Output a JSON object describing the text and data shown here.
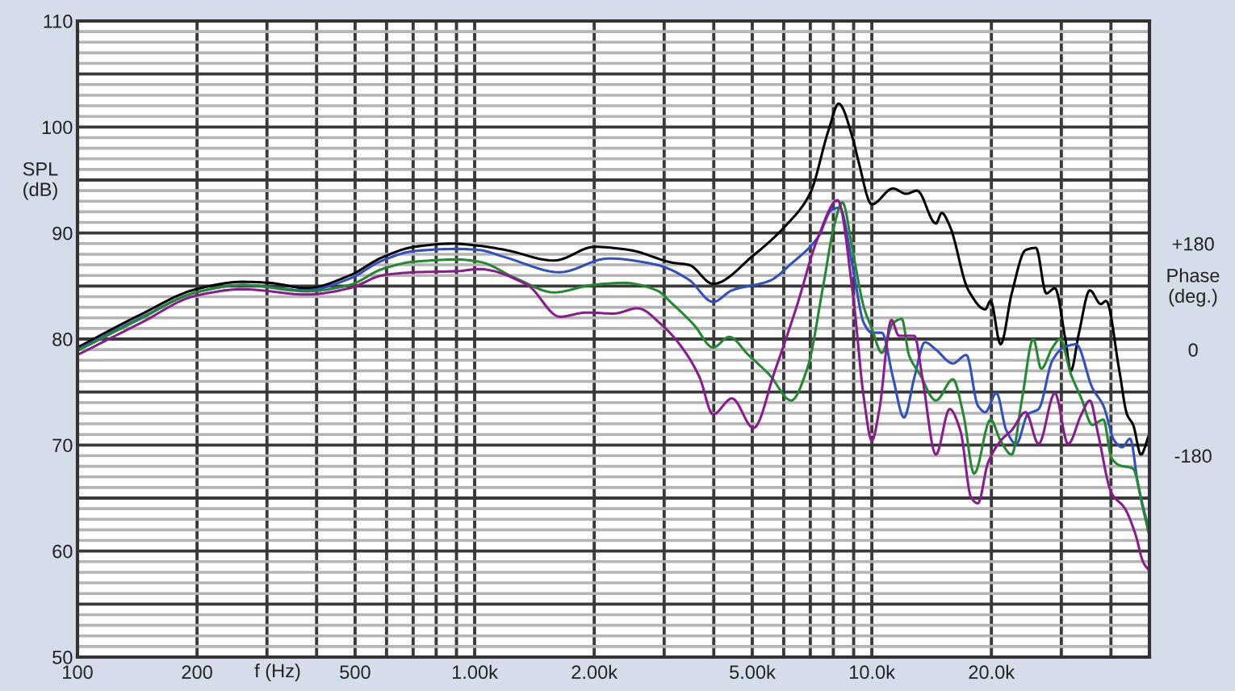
{
  "chart_data": {
    "type": "line",
    "xlabel": "f (Hz)",
    "ylabel": "SPL\n(dB)",
    "y2label": "Phase\n(deg.)",
    "log": "x",
    "grid": true,
    "xlim": [
      100,
      50000
    ],
    "ylim": [
      50,
      110
    ],
    "y2lim": [
      -522,
      558
    ],
    "xticks": [
      100,
      200,
      {
        "value": 300,
        "label": null
      },
      {
        "value": 400,
        "label": null
      },
      500,
      {
        "value": 600,
        "label": null
      },
      {
        "value": 700,
        "label": null
      },
      {
        "value": 800,
        "label": null
      },
      {
        "value": 900,
        "label": null
      },
      {
        "value": 1000,
        "label": "1.00k"
      },
      {
        "value": 2000,
        "label": "2.00k"
      },
      {
        "value": 3000,
        "label": null
      },
      {
        "value": 4000,
        "label": null
      },
      {
        "value": 5000,
        "label": "5.00k"
      },
      {
        "value": 6000,
        "label": null
      },
      {
        "value": 7000,
        "label": null
      },
      {
        "value": 8000,
        "label": null
      },
      {
        "value": 9000,
        "label": null
      },
      {
        "value": 10000,
        "label": "10.0k"
      },
      {
        "value": 20000,
        "label": "20.0k"
      },
      {
        "value": 30000,
        "label": null
      },
      {
        "value": 40000,
        "label": null
      }
    ],
    "yticks": [
      50,
      {
        "value": 51,
        "label": null
      },
      {
        "value": 52,
        "label": null
      },
      {
        "value": 53,
        "label": null
      },
      {
        "value": 54,
        "label": null
      },
      {
        "value": 55,
        "label": null
      },
      {
        "value": 56,
        "label": null
      },
      {
        "value": 57,
        "label": null
      },
      {
        "value": 58,
        "label": null
      },
      {
        "value": 59,
        "label": null
      },
      60,
      {
        "value": 61,
        "label": null
      },
      {
        "value": 62,
        "label": null
      },
      {
        "value": 63,
        "label": null
      },
      {
        "value": 64,
        "label": null
      },
      {
        "value": 65,
        "label": null
      },
      {
        "value": 66,
        "label": null
      },
      {
        "value": 67,
        "label": null
      },
      {
        "value": 68,
        "label": null
      },
      {
        "value": 69,
        "label": null
      },
      70,
      {
        "value": 71,
        "label": null
      },
      {
        "value": 72,
        "label": null
      },
      {
        "value": 73,
        "label": null
      },
      {
        "value": 74,
        "label": null
      },
      {
        "value": 75,
        "label": null
      },
      {
        "value": 76,
        "label": null
      },
      {
        "value": 77,
        "label": null
      },
      {
        "value": 78,
        "label": null
      },
      {
        "value": 79,
        "label": null
      },
      80,
      {
        "value": 81,
        "label": null
      },
      {
        "value": 82,
        "label": null
      },
      {
        "value": 83,
        "label": null
      },
      {
        "value": 84,
        "label": null
      },
      {
        "value": 85,
        "label": null
      },
      {
        "value": 86,
        "label": null
      },
      {
        "value": 87,
        "label": null
      },
      {
        "value": 88,
        "label": null
      },
      {
        "value": 89,
        "label": null
      },
      90,
      {
        "value": 91,
        "label": null
      },
      {
        "value": 92,
        "label": null
      },
      {
        "value": 93,
        "label": null
      },
      {
        "value": 94,
        "label": null
      },
      {
        "value": 95,
        "label": null
      },
      {
        "value": 96,
        "label": null
      },
      {
        "value": 97,
        "label": null
      },
      {
        "value": 98,
        "label": null
      },
      {
        "value": 99,
        "label": null
      },
      100,
      {
        "value": 101,
        "label": null
      },
      {
        "value": 102,
        "label": null
      },
      {
        "value": 103,
        "label": null
      },
      {
        "value": 104,
        "label": null
      },
      {
        "value": 105,
        "label": null
      },
      {
        "value": 106,
        "label": null
      },
      {
        "value": 107,
        "label": null
      },
      {
        "value": 108,
        "label": null
      },
      {
        "value": 109,
        "label": null
      },
      110
    ],
    "y2ticks": [
      {
        "value": 180,
        "label": "+180"
      },
      0,
      -180
    ],
    "series": [
      {
        "color": "#000000",
        "x": [
          100,
          144,
          199,
          260,
          304,
          378,
          485,
          585,
          705,
          877,
          1025,
          1197,
          1585,
          2004,
          2455,
          3154,
          3461,
          3983,
          5035,
          6072,
          6985,
          7796,
          8250,
          8974,
          9250,
          10000,
          11300,
          12200,
          13000,
          14500,
          15000,
          15700,
          17500,
          19300,
          19900,
          21100,
          22500,
          24400,
          25900,
          27500,
          28900,
          30700,
          31700,
          33200,
          35400,
          37700,
          38900,
          42000,
          43900,
          45500,
          47600,
          49800
        ],
        "values": [
          79.2,
          82.3,
          84.7,
          85.4,
          85.3,
          84.8,
          86.0,
          87.7,
          88.7,
          89.0,
          88.8,
          88.4,
          87.4,
          88.7,
          88.4,
          87.2,
          87.0,
          85.2,
          87.9,
          90.7,
          93.7,
          99.8,
          102.2,
          98.8,
          96.8,
          92.7,
          94.2,
          93.7,
          94.0,
          90.9,
          91.9,
          90.7,
          84.6,
          82.8,
          83.6,
          79.5,
          84.3,
          88.4,
          88.6,
          84.3,
          84.8,
          80.0,
          77.0,
          80.5,
          84.6,
          83.3,
          83.6,
          77.0,
          72.9,
          71.9,
          69.1,
          70.9
        ]
      },
      {
        "color": "#3050c0",
        "x": [
          100,
          144,
          199,
          260,
          378,
          485,
          585,
          705,
          905,
          1025,
          1197,
          1638,
          2168,
          2871,
          3461,
          3983,
          4446,
          5534,
          6264,
          7323,
          7930,
          8300,
          8970,
          9550,
          10000,
          10600,
          11300,
          12050,
          12800,
          13600,
          14500,
          16000,
          17300,
          18500,
          19300,
          20600,
          21800,
          23100,
          24700,
          26300,
          28500,
          30400,
          32700,
          35900,
          38300,
          40800,
          42700,
          44700,
          46800,
          49800
        ],
        "values": [
          79.0,
          82.0,
          84.4,
          85.1,
          84.6,
          85.7,
          87.4,
          88.3,
          88.5,
          88.4,
          87.7,
          86.3,
          87.6,
          87.0,
          85.6,
          83.5,
          84.6,
          85.5,
          87.1,
          89.6,
          92.2,
          92.4,
          86.6,
          81.5,
          80.6,
          80.6,
          76.4,
          72.6,
          76.4,
          79.7,
          79.0,
          77.7,
          78.5,
          73.7,
          73.1,
          74.9,
          71.4,
          70.1,
          72.9,
          73.4,
          78.0,
          79.2,
          79.5,
          75.4,
          73.7,
          70.4,
          69.8,
          70.6,
          66.3,
          62.0
        ]
      },
      {
        "color": "#22892e",
        "x": [
          100,
          144,
          199,
          260,
          378,
          485,
          585,
          705,
          905,
          1025,
          1275,
          1585,
          1973,
          2378,
          2871,
          3152,
          3573,
          3983,
          4375,
          4890,
          5534,
          6264,
          6875,
          7550,
          8040,
          8430,
          8970,
          9550,
          10000,
          10600,
          11300,
          11900,
          12400,
          13200,
          14500,
          16000,
          17000,
          18100,
          19900,
          21100,
          22500,
          23900,
          25500,
          26700,
          28500,
          29800,
          31700,
          33700,
          35900,
          38300,
          40100,
          42000,
          45400,
          48300,
          49800
        ],
        "values": [
          78.9,
          81.9,
          84.4,
          85.1,
          84.5,
          85.1,
          86.6,
          87.3,
          87.5,
          87.3,
          85.7,
          84.4,
          85.1,
          85.3,
          84.6,
          83.3,
          81.3,
          79.2,
          80.2,
          78.5,
          76.6,
          74.2,
          77.2,
          85.1,
          90.7,
          92.9,
          88.1,
          83.0,
          81.0,
          78.7,
          81.5,
          81.9,
          78.5,
          76.7,
          74.2,
          76.2,
          72.9,
          67.3,
          72.4,
          70.4,
          69.1,
          74.4,
          80.0,
          77.2,
          79.2,
          80.0,
          76.7,
          74.4,
          71.9,
          72.4,
          68.8,
          68.1,
          67.8,
          63.8,
          61.7
        ]
      },
      {
        "color": "#8a1a8e",
        "x": [
          100,
          144,
          199,
          260,
          378,
          485,
          585,
          705,
          905,
          1025,
          1358,
          1638,
          1914,
          2236,
          2572,
          2965,
          3357,
          3683,
          3983,
          4446,
          5035,
          5700,
          6460,
          7323,
          8200,
          8970,
          9550,
          10000,
          10450,
          11200,
          11700,
          12800,
          13400,
          14500,
          15700,
          16700,
          17800,
          18500,
          19600,
          21100,
          22500,
          24400,
          26300,
          28900,
          31200,
          33700,
          35400,
          37100,
          40100,
          43400,
          46000,
          48300,
          49800
        ],
        "values": [
          78.5,
          81.5,
          84.1,
          84.7,
          84.2,
          84.8,
          86.0,
          86.3,
          86.4,
          86.6,
          85.1,
          82.1,
          82.5,
          82.4,
          82.9,
          81.3,
          79.0,
          76.4,
          72.9,
          74.4,
          71.6,
          77.0,
          83.0,
          89.6,
          93.1,
          84.1,
          74.4,
          70.4,
          73.4,
          81.8,
          80.3,
          80.3,
          76.4,
          69.1,
          73.4,
          71.4,
          65.0,
          64.5,
          68.3,
          70.4,
          71.4,
          73.1,
          70.1,
          74.9,
          70.1,
          72.9,
          74.2,
          71.1,
          65.5,
          64.0,
          61.7,
          58.9,
          58.2
        ]
      }
    ]
  }
}
